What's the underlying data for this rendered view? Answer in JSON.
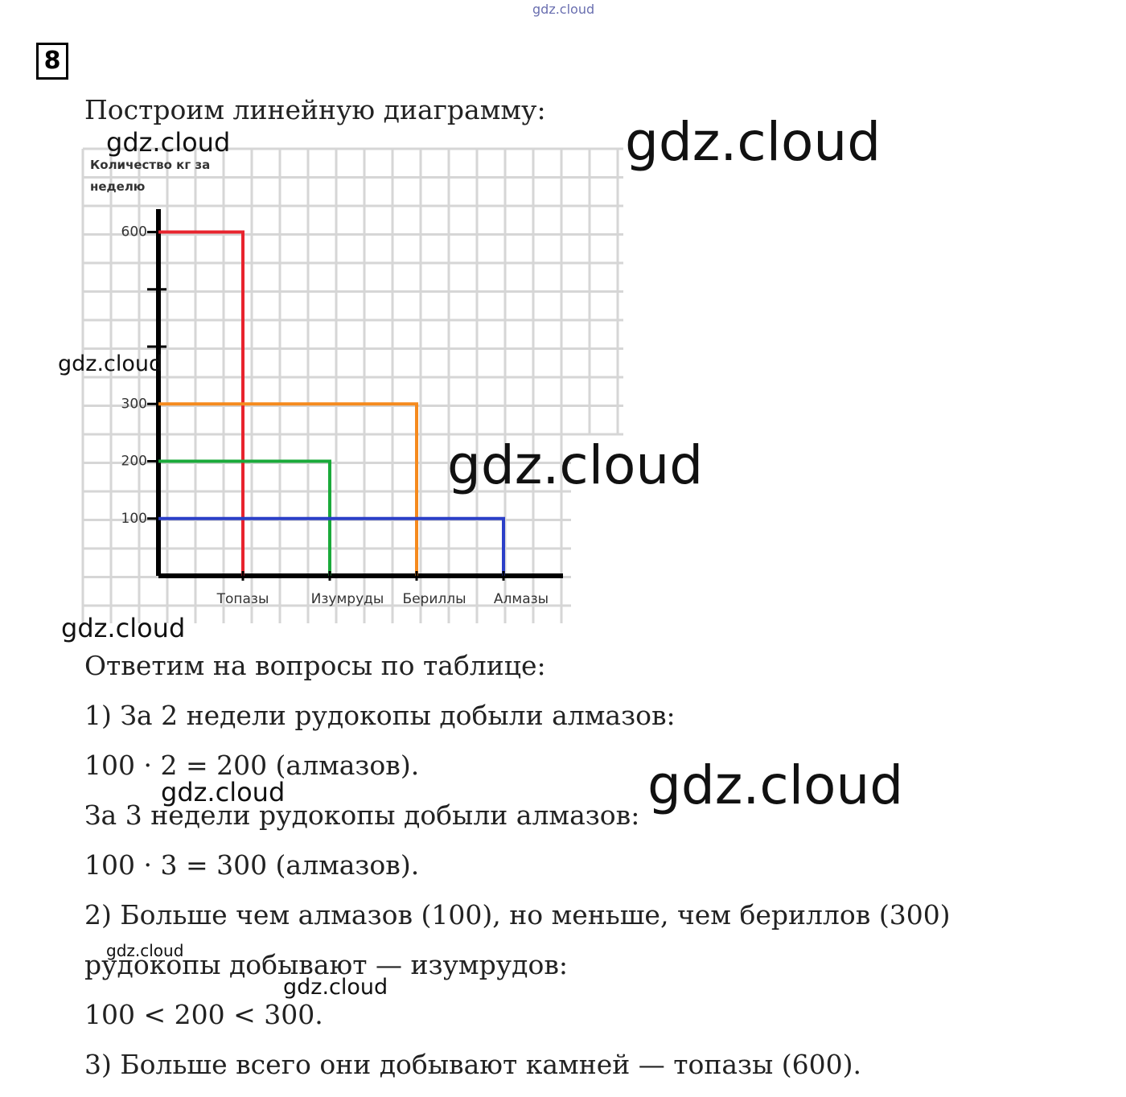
{
  "problem_number": "8",
  "intro": "Построим линейную диаграмму:",
  "chart_data": {
    "type": "line-bar",
    "y_label": "Количество кг за неделю",
    "categories": [
      "Топазы",
      "Изумруды",
      "Бериллы",
      "Алмазы"
    ],
    "values": [
      600,
      200,
      300,
      100
    ],
    "colors": [
      "#e8242e",
      "#1aaa3a",
      "#f58a1e",
      "#2b3fc8"
    ],
    "ylim": [
      0,
      640
    ],
    "yticks": [
      100,
      200,
      300,
      {
        "value": 400,
        "label": null
      },
      {
        "value": 500,
        "label": null
      },
      600
    ],
    "grid": true
  },
  "answers": [
    "Ответим на вопросы по таблице:",
    "1) За 2 недели рудокопы добыли алмазов:",
    "100 · 2 = 200 (алмазов).",
    "За 3 недели рудокопы добыли алмазов:",
    "100 · 3 = 300 (алмазов).",
    "2) Больше чем алмазов (100), но меньше, чем бериллов (300)",
    "рудокопы добывают — изумрудов:",
    "100 < 200 < 300.",
    "3) Больше всего они добывают камней — топазы (600)."
  ],
  "watermarks": [
    "gdz.cloud",
    "gdz.cloud",
    "gdz.cloud",
    "gdz.cloud",
    "gdz.cloud",
    "gdz.cloud",
    "gdz.cloud",
    "gdz.cloud",
    "gdz.cloud",
    "gdz.cloud"
  ]
}
